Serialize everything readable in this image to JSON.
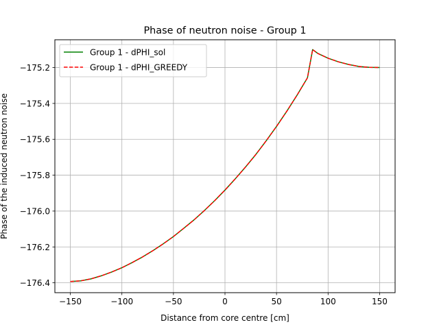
{
  "chart_data": {
    "type": "line",
    "title": "Phase of neutron noise - Group 1",
    "xlabel": "Distance from core centre [cm]",
    "ylabel": "Phase of the induced neutron noise",
    "xlim": [
      -165,
      165
    ],
    "ylim": [
      -176.455,
      -175.045
    ],
    "xticks": [
      -150,
      -100,
      -50,
      0,
      50,
      100,
      150
    ],
    "xtick_labels": [
      "−150",
      "−100",
      "−50",
      "0",
      "50",
      "100",
      "150"
    ],
    "yticks": [
      -176.4,
      -176.2,
      -176.0,
      -175.8,
      -175.6,
      -175.4,
      -175.2
    ],
    "ytick_labels": [
      "−176.4",
      "−176.2",
      "−176.0",
      "−175.8",
      "−175.6",
      "−175.4",
      "−175.2"
    ],
    "grid": true,
    "legend_position": "top-left",
    "series": [
      {
        "name": "Group 1 - dPHI_sol",
        "color": "#008000",
        "style": "solid",
        "x": [
          -150,
          -140,
          -130,
          -120,
          -110,
          -100,
          -90,
          -80,
          -70,
          -60,
          -50,
          -40,
          -30,
          -20,
          -10,
          0,
          10,
          20,
          30,
          40,
          50,
          60,
          70,
          80,
          85,
          90,
          100,
          110,
          120,
          130,
          140,
          150
        ],
        "y": [
          -176.393,
          -176.389,
          -176.378,
          -176.361,
          -176.34,
          -176.316,
          -176.287,
          -176.256,
          -176.221,
          -176.183,
          -176.142,
          -176.096,
          -176.049,
          -175.997,
          -175.942,
          -175.883,
          -175.82,
          -175.754,
          -175.684,
          -175.608,
          -175.528,
          -175.443,
          -175.353,
          -175.257,
          -175.1,
          -175.121,
          -175.148,
          -175.168,
          -175.183,
          -175.194,
          -175.199,
          -175.2
        ]
      },
      {
        "name": "Group 1 - dPHI_GREEDY",
        "color": "#ff0000",
        "style": "dashed",
        "x": [
          -150,
          -140,
          -130,
          -120,
          -110,
          -100,
          -90,
          -80,
          -70,
          -60,
          -50,
          -40,
          -30,
          -20,
          -10,
          0,
          10,
          20,
          30,
          40,
          50,
          60,
          70,
          80,
          85,
          90,
          100,
          110,
          120,
          130,
          140,
          150
        ],
        "y": [
          -176.393,
          -176.389,
          -176.378,
          -176.361,
          -176.34,
          -176.316,
          -176.287,
          -176.256,
          -176.221,
          -176.183,
          -176.142,
          -176.096,
          -176.049,
          -175.997,
          -175.942,
          -175.883,
          -175.82,
          -175.754,
          -175.684,
          -175.608,
          -175.528,
          -175.443,
          -175.353,
          -175.257,
          -175.1,
          -175.121,
          -175.148,
          -175.168,
          -175.183,
          -175.194,
          -175.199,
          -175.2
        ]
      }
    ]
  }
}
